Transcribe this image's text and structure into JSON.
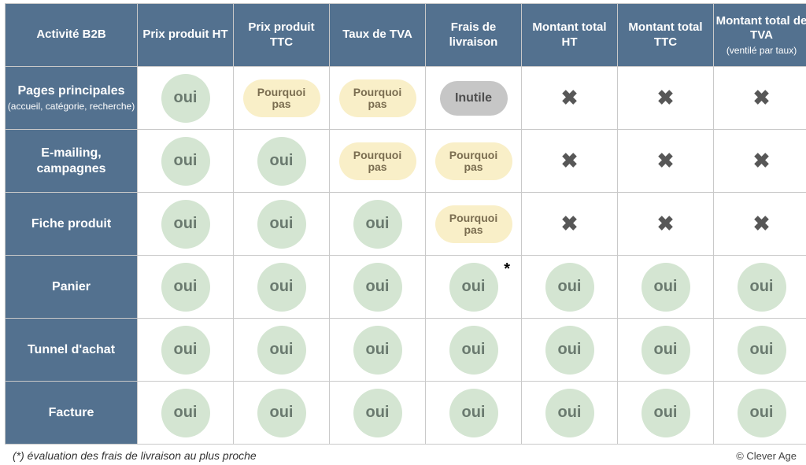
{
  "colors": {
    "header_bg": "#53718f",
    "header_text": "#ffffff",
    "border": "#c9c9c9",
    "oui_bg": "#d4e5d2",
    "oui_text": "#6a7a6f",
    "maybe_bg": "#f9efc8",
    "maybe_text": "#7a6d50",
    "useless_bg": "#c6c6c6",
    "useless_text": "#4e4e4e",
    "cross": "#575757"
  },
  "labels": {
    "oui": "oui",
    "maybe_line1": "Pourquoi",
    "maybe_line2": "pas",
    "useless": "Inutile",
    "cross": "✖",
    "star": "*"
  },
  "columns": [
    {
      "title": "Activité B2B",
      "sub": ""
    },
    {
      "title": "Prix produit HT",
      "sub": ""
    },
    {
      "title": "Prix produit TTC",
      "sub": ""
    },
    {
      "title": "Taux de TVA",
      "sub": ""
    },
    {
      "title": "Frais de livraison",
      "sub": ""
    },
    {
      "title": "Montant total HT",
      "sub": ""
    },
    {
      "title": "Montant total TTC",
      "sub": ""
    },
    {
      "title": "Montant total de TVA",
      "sub": "(ventilé par taux)"
    }
  ],
  "rows": [
    {
      "label": "Pages principales",
      "sub": "(accueil, catégorie, recherche)",
      "cells": [
        "oui",
        "maybe",
        "maybe",
        "useless",
        "cross",
        "cross",
        "cross"
      ]
    },
    {
      "label": "E-mailing, campagnes",
      "sub": "",
      "cells": [
        "oui",
        "oui",
        "maybe",
        "maybe",
        "cross",
        "cross",
        "cross"
      ]
    },
    {
      "label": "Fiche produit",
      "sub": "",
      "cells": [
        "oui",
        "oui",
        "oui",
        "maybe",
        "cross",
        "cross",
        "cross"
      ]
    },
    {
      "label": "Panier",
      "sub": "",
      "cells": [
        "oui",
        "oui",
        "oui",
        "oui_star",
        "oui",
        "oui",
        "oui"
      ]
    },
    {
      "label": "Tunnel d'achat",
      "sub": "",
      "cells": [
        "oui",
        "oui",
        "oui",
        "oui",
        "oui",
        "oui",
        "oui"
      ]
    },
    {
      "label": "Facture",
      "sub": "",
      "cells": [
        "oui",
        "oui",
        "oui",
        "oui",
        "oui",
        "oui",
        "oui"
      ]
    }
  ],
  "footer": {
    "note": "(*) évaluation des frais de livraison au plus proche",
    "credit": "© Clever Age"
  }
}
